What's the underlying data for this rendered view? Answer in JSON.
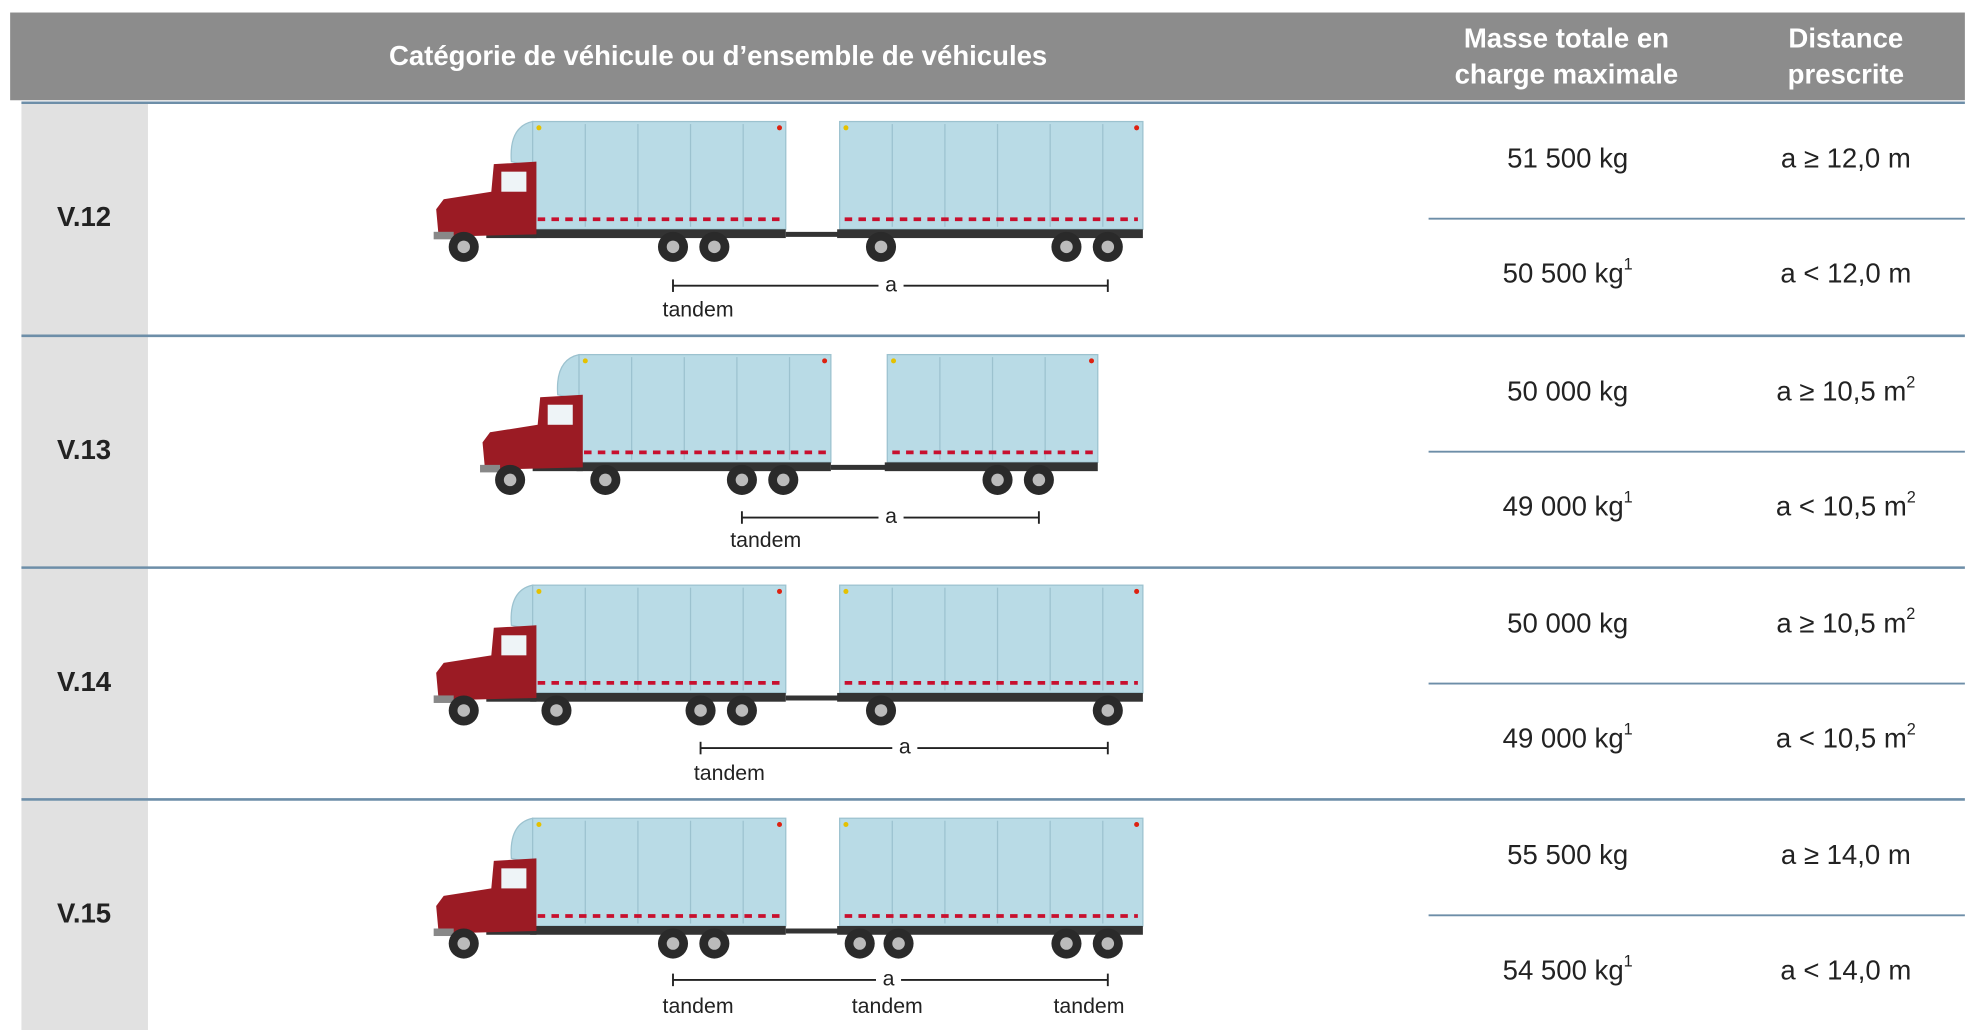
{
  "header": {
    "category": "Catégorie de véhicule ou d’ensemble de véhicules",
    "mass": [
      "Masse totale en",
      "charge maximale"
    ],
    "distance": [
      "Distance",
      "prescrite"
    ]
  },
  "rows": [
    {
      "code": "V.12",
      "diagram": {
        "span": "a",
        "labels": [
          "tandem"
        ]
      },
      "entries": [
        {
          "mass": "51 500 kg",
          "distance": "a ≥ 12,0 m"
        },
        {
          "mass": "50 500 kg",
          "mass_note": "1",
          "distance": "a < 12,0 m"
        }
      ]
    },
    {
      "code": "V.13",
      "diagram": {
        "span": "a",
        "labels": [
          "tandem"
        ]
      },
      "entries": [
        {
          "mass": "50 000 kg",
          "distance": "a ≥ 10,5 m",
          "distance_note": "2"
        },
        {
          "mass": "49 000 kg",
          "mass_note": "1",
          "distance": "a < 10,5 m",
          "distance_note": "2"
        }
      ]
    },
    {
      "code": "V.14",
      "diagram": {
        "span": "a",
        "labels": [
          "tandem"
        ]
      },
      "entries": [
        {
          "mass": "50 000 kg",
          "distance": "a ≥ 10,5 m",
          "distance_note": "2"
        },
        {
          "mass": "49 000 kg",
          "mass_note": "1",
          "distance": "a < 10,5 m",
          "distance_note": "2"
        }
      ]
    },
    {
      "code": "V.15",
      "diagram": {
        "span": "a",
        "labels": [
          "tandem",
          "tandem",
          "tandem"
        ]
      },
      "entries": [
        {
          "mass": "55 500 kg",
          "distance": "a ≥ 14,0 m"
        },
        {
          "mass": "54 500 kg",
          "mass_note": "1",
          "distance": "a < 14,0 m"
        }
      ]
    }
  ]
}
